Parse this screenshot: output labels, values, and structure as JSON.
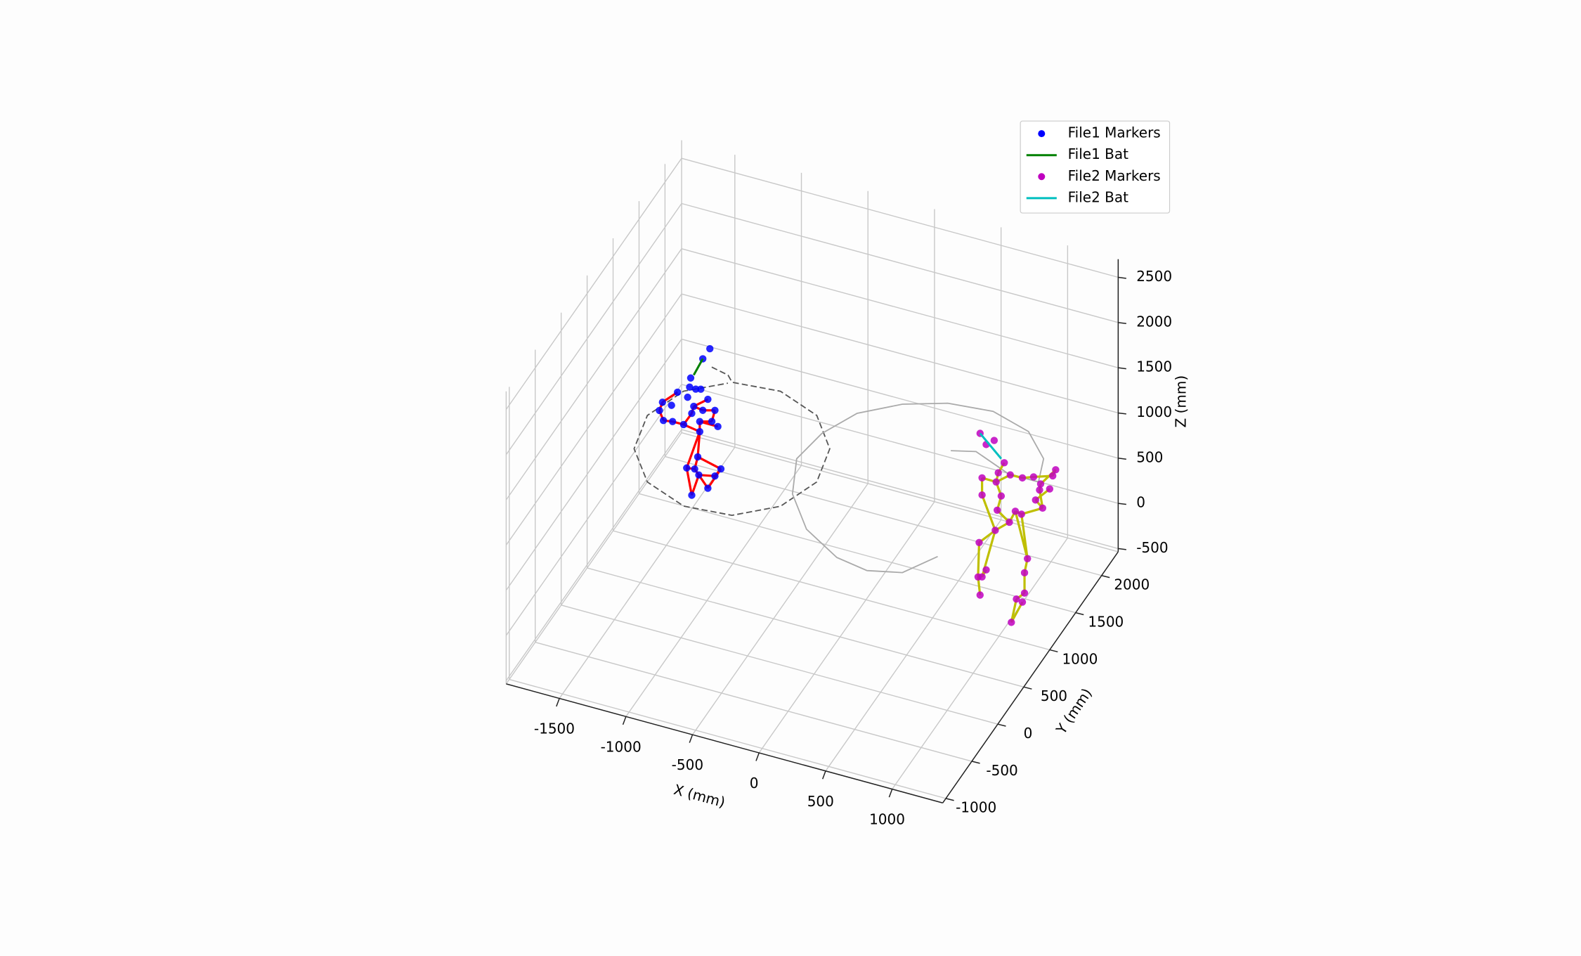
{
  "chart_data": {
    "type": "scatter3d",
    "xlabel": "X (mm)",
    "ylabel": "Y (mm)",
    "zlabel": "Z (mm)",
    "xlim": [
      -1900,
      1380
    ],
    "ylim": [
      -1060,
      2320
    ],
    "zlim": [
      -535,
      2700
    ],
    "xticks": [
      -1500,
      -1000,
      -500,
      0,
      500,
      1000
    ],
    "yticks": [
      -1000,
      -500,
      0,
      500,
      1000,
      1500,
      2000
    ],
    "zticks": [
      -500,
      0,
      500,
      1000,
      1500,
      2000,
      2500
    ],
    "grid": true,
    "legend": "upper right",
    "series": [
      {
        "name": "File1 Markers",
        "mode": "markers",
        "color": "#0000ff",
        "edge_color": "#ff0000",
        "x": [
          -1212,
          -1265,
          -1356,
          -1364,
          -1318,
          -1280,
          -1455,
          -1379,
          -1227,
          -1568,
          -1500,
          -1333,
          -1265,
          -1174,
          -1591,
          -1348,
          -1561,
          -1492,
          -1409,
          -1288,
          -1197,
          -1152,
          -1288,
          -1303,
          -1386,
          -1326,
          -1129,
          -1295,
          -1174,
          -1227,
          -1348
        ],
        "y": [
          1100,
          1100,
          1100,
          1100,
          1100,
          1100,
          1100,
          1100,
          1100,
          1100,
          1100,
          1100,
          1100,
          1100,
          1100,
          1100,
          1100,
          1100,
          1100,
          1100,
          1100,
          1100,
          1100,
          1100,
          1100,
          1100,
          1100,
          1100,
          1100,
          1100,
          1100
        ],
        "z": [
          1673,
          1540,
          1291,
          1187,
          1183,
          1198,
          1094,
          1069,
          1107,
          938,
          931,
          987,
          970,
          1006,
          838,
          903,
          739,
          755,
          755,
          837,
          874,
          836,
          725,
          440,
          284,
          297,
          377,
          243,
          280,
          124,
          -2
        ],
        "edges": [
          [
            14,
            16
          ],
          [
            16,
            17
          ],
          [
            17,
            18
          ],
          [
            18,
            15
          ],
          [
            15,
            11
          ],
          [
            11,
            12
          ],
          [
            12,
            13
          ],
          [
            13,
            20
          ],
          [
            20,
            19
          ],
          [
            19,
            22
          ],
          [
            22,
            23
          ],
          [
            23,
            25
          ],
          [
            25,
            27
          ],
          [
            27,
            29
          ],
          [
            29,
            26
          ],
          [
            26,
            28
          ],
          [
            28,
            27
          ],
          [
            24,
            25
          ],
          [
            24,
            30
          ],
          [
            30,
            27
          ],
          [
            21,
            19
          ],
          [
            8,
            11
          ],
          [
            6,
            9
          ],
          [
            9,
            14
          ],
          [
            18,
            22
          ],
          [
            22,
            24
          ],
          [
            23,
            26
          ]
        ]
      },
      {
        "name": "File1 Bat",
        "mode": "lines",
        "color": "#008000",
        "x": [
          -1265,
          -1333
        ],
        "y": [
          1100,
          1100
        ],
        "z": [
          1540,
          1333
        ]
      },
      {
        "name": "File2 Markers",
        "mode": "markers",
        "color": "#bf00bf",
        "edge_color": "#bfbf00",
        "x": [
          896,
          942,
          1002,
          1078,
          911,
          1033,
          1123,
          1214,
          1298,
          1464,
          1442,
          1017,
          1351,
          1419,
          911,
          1055,
          1343,
          1313,
          1025,
          1161,
          1207,
          1366,
          1116,
          1010,
          889,
          1252,
          942,
          1230,
          881,
          911,
          1230,
          896,
          1169,
          1214,
          1131
        ],
        "y": [
          900,
          900,
          900,
          900,
          900,
          900,
          900,
          900,
          900,
          900,
          900,
          900,
          900,
          900,
          900,
          900,
          900,
          900,
          900,
          900,
          900,
          900,
          900,
          900,
          900,
          900,
          900,
          900,
          900,
          900,
          900,
          900,
          900,
          900,
          900
        ],
        "z": [
          1747,
          1642,
          1711,
          1495,
          1261,
          1366,
          1379,
          1382,
          1427,
          1572,
          1496,
          1258,
          1370,
          1342,
          1071,
          1118,
          1300,
          1177,
          949,
          992,
          978,
          1109,
          852,
          720,
          537,
          504,
          256,
          339,
          153,
          166,
          115,
          -41,
          24,
          8,
          -249
        ],
        "edges": [
          [
            4,
            11
          ],
          [
            11,
            5
          ],
          [
            5,
            3
          ],
          [
            4,
            14
          ],
          [
            14,
            23
          ],
          [
            11,
            15
          ],
          [
            15,
            18
          ],
          [
            18,
            22
          ],
          [
            22,
            19
          ],
          [
            19,
            20
          ],
          [
            20,
            21
          ],
          [
            21,
            16
          ],
          [
            16,
            12
          ],
          [
            12,
            9
          ],
          [
            9,
            10
          ],
          [
            10,
            8
          ],
          [
            8,
            7
          ],
          [
            7,
            6
          ],
          [
            6,
            11
          ],
          [
            13,
            17
          ],
          [
            17,
            21
          ],
          [
            23,
            24
          ],
          [
            24,
            28
          ],
          [
            28,
            31
          ],
          [
            23,
            29
          ],
          [
            29,
            26
          ],
          [
            20,
            25
          ],
          [
            25,
            27
          ],
          [
            27,
            30
          ],
          [
            30,
            32
          ],
          [
            32,
            34
          ],
          [
            33,
            34
          ],
          [
            22,
            23
          ],
          [
            19,
            25
          ]
        ]
      },
      {
        "name": "File2 Bat",
        "mode": "lines",
        "color": "#00bfbf",
        "x": [
          896,
          1055
        ],
        "y": [
          900,
          900
        ],
        "z": [
          1747,
          1531
        ]
      }
    ],
    "paths": [
      {
        "color": "#555555",
        "dashed": true,
        "x": [
          -1467,
          -1329,
          -1272,
          -927,
          -591,
          -362,
          -298,
          -420,
          -686,
          -1031,
          -1367,
          -1597,
          -1660,
          -1538,
          -1294
        ],
        "y": [
          1790,
          1750,
          1681,
          1729,
          1567,
          1231,
          815,
          429,
          177,
          132,
          293,
          628,
          1045,
          1431,
          1658
        ],
        "z": [
          800,
          800,
          800,
          800,
          800,
          800,
          800,
          800,
          800,
          800,
          800,
          800,
          800,
          800,
          800
        ]
      },
      {
        "color": "#aaaaaa",
        "dashed": false,
        "x": [
          450,
          613,
          915,
          1141,
          1071,
          856,
          544,
          222,
          -60,
          -306,
          -440,
          -487,
          -358,
          -114,
          202,
          450,
          682,
          834
        ],
        "y": [
          1480,
          1547,
          1396,
          1397,
          1675,
          1936,
          2055,
          2007,
          1856,
          1613,
          1276,
          914,
          502,
          147,
          -79,
          -134,
          -48,
          243
        ],
        "z": [
          900,
          900,
          900,
          900,
          900,
          900,
          900,
          900,
          900,
          900,
          900,
          900,
          900,
          900,
          900,
          900,
          900,
          900
        ]
      }
    ]
  }
}
